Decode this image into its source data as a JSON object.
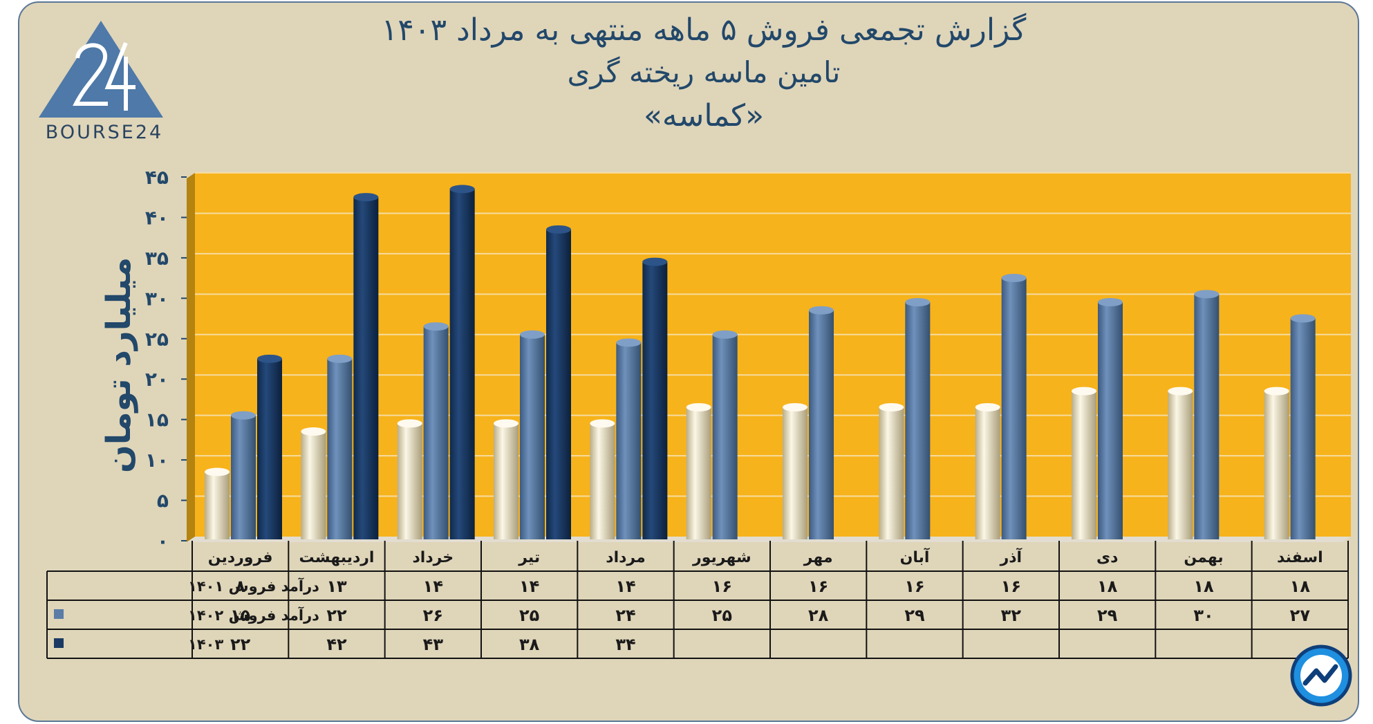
{
  "header": {
    "title_line1": "گزارش تجمعی فروش ۵ ماهه منتهی به مرداد ۱۴۰۳",
    "title_line2": "تامین ماسه ریخته گری",
    "title_line3": "«کماسه»"
  },
  "logo": {
    "text": "BOURSE24",
    "mark": "24",
    "icon": "bourse24-triangle-logo"
  },
  "badge": {
    "icon": "trend-chart-badge-icon"
  },
  "colors": {
    "background": "#dfd5b9",
    "plot_area": "#f7b31b",
    "s1401": "#efe8cf",
    "s1402": "#5a7ca6",
    "s1403": "#1a3a63",
    "text": "#22486a"
  },
  "chart_data": {
    "type": "bar",
    "categories": [
      "فروردین",
      "اردیبهشت",
      "خرداد",
      "تیر",
      "مرداد",
      "شهریور",
      "مهر",
      "آبان",
      "آذر",
      "دی",
      "بهمن",
      "اسفند"
    ],
    "ylabel": "میلیارد تومان",
    "ylim": [
      0,
      45
    ],
    "y_ticks": [
      0,
      5,
      10,
      15,
      20,
      25,
      30,
      35,
      40,
      45
    ],
    "y_tick_labels": [
      "۰",
      "۵",
      "۱۰",
      "۱۵",
      "۲۰",
      "۲۵",
      "۳۰",
      "۳۵",
      "۴۰",
      "۴۵"
    ],
    "grid": true,
    "series": [
      {
        "name": "درآمد فروش ۱۴۰۱",
        "color": "#efe8cf",
        "values": [
          8,
          13,
          14,
          14,
          14,
          16,
          16,
          16,
          16,
          18,
          18,
          18
        ],
        "labels": [
          "۸",
          "۱۳",
          "۱۴",
          "۱۴",
          "۱۴",
          "۱۶",
          "۱۶",
          "۱۶",
          "۱۶",
          "۱۸",
          "۱۸",
          "۱۸"
        ]
      },
      {
        "name": "درآمد فروش ۱۴۰۲",
        "color": "#5a7ca6",
        "values": [
          15,
          22,
          26,
          25,
          24,
          25,
          28,
          29,
          32,
          29,
          30,
          27
        ],
        "labels": [
          "۱۵",
          "۲۲",
          "۲۶",
          "۲۵",
          "۲۴",
          "۲۵",
          "۲۸",
          "۲۹",
          "۳۲",
          "۲۹",
          "۳۰",
          "۲۷"
        ]
      },
      {
        "name": "۱۴۰۳",
        "color": "#1a3a63",
        "values": [
          22,
          42,
          43,
          38,
          34,
          null,
          null,
          null,
          null,
          null,
          null,
          null
        ],
        "labels": [
          "۲۲",
          "۴۲",
          "۴۳",
          "۳۸",
          "۳۴",
          "",
          "",
          "",
          "",
          "",
          "",
          ""
        ]
      }
    ]
  }
}
